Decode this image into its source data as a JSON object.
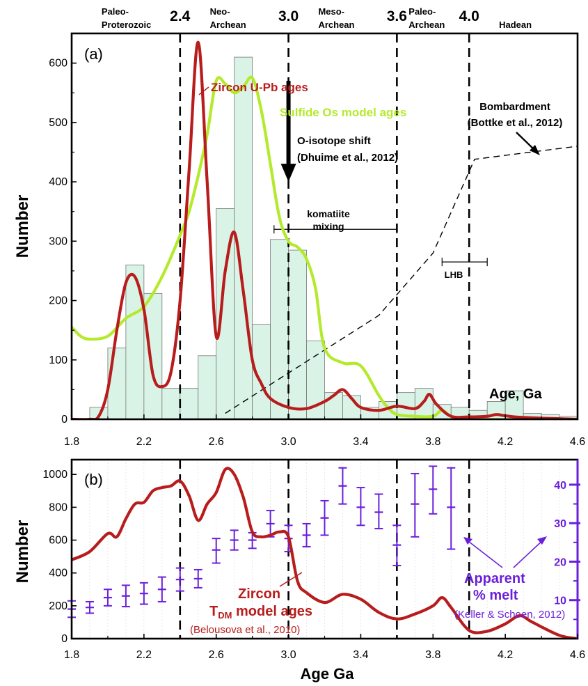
{
  "chart_data": [
    {
      "type": "line",
      "panel_label": "(a)",
      "ylabel": "Number",
      "xlabel": "Age, Ga",
      "xlim": [
        1.8,
        4.6
      ],
      "ylim": [
        0,
        650
      ],
      "x_ticks": [
        "1.8",
        "2.2",
        "2.6",
        "3.0",
        "3.4",
        "3.8",
        "4.2",
        "4.6"
      ],
      "y_ticks": [
        "0",
        "100",
        "200",
        "300",
        "400",
        "500",
        "600"
      ],
      "eon_labels": [
        {
          "l1": "Paleo-",
          "l2": "Proterozoic",
          "x": 2.1
        },
        {
          "l1": "Neo-",
          "l2": "Archean",
          "x": 2.7
        },
        {
          "l1": "Meso-",
          "l2": "Archean",
          "x": 3.3
        },
        {
          "l1": "Paleo-",
          "l2": "Archean",
          "x": 3.8
        },
        {
          "l1": "",
          "l2": "Hadean",
          "x": 4.3
        }
      ],
      "boundaries": [
        {
          "value": 2.4,
          "label": "2.4"
        },
        {
          "value": 3.0,
          "label": "3.0"
        },
        {
          "value": 3.6,
          "label": "3.6"
        },
        {
          "value": 4.0,
          "label": "4.0"
        }
      ],
      "histogram": {
        "bin_start": 1.9,
        "bin_width": 0.1,
        "counts": [
          20,
          120,
          260,
          212,
          52,
          52,
          107,
          355,
          610,
          160,
          303,
          285,
          132,
          45,
          40,
          20,
          30,
          45,
          52,
          25,
          20,
          15,
          30,
          48,
          10,
          8,
          5
        ],
        "color": "#d9f4e6"
      },
      "series": [
        {
          "name": "Zircon U-Pb ages",
          "color": "#b81c1c",
          "x": [
            1.8,
            1.9,
            1.95,
            2.0,
            2.05,
            2.1,
            2.15,
            2.2,
            2.25,
            2.3,
            2.35,
            2.4,
            2.45,
            2.5,
            2.55,
            2.6,
            2.65,
            2.7,
            2.75,
            2.8,
            2.85,
            2.9,
            3.0,
            3.1,
            3.2,
            3.25,
            3.3,
            3.35,
            3.4,
            3.5,
            3.6,
            3.7,
            3.75,
            3.78,
            3.82,
            3.9,
            4.0,
            4.1,
            4.15,
            4.2,
            4.3,
            4.6
          ],
          "y": [
            0,
            0,
            5,
            50,
            150,
            230,
            240,
            185,
            75,
            55,
            80,
            200,
            420,
            635,
            400,
            140,
            250,
            315,
            215,
            100,
            60,
            35,
            20,
            18,
            30,
            40,
            50,
            35,
            20,
            15,
            22,
            18,
            30,
            42,
            25,
            5,
            4,
            5,
            8,
            6,
            3,
            0
          ]
        },
        {
          "name": "Sulfide Os model ages",
          "color": "#b4ea2c",
          "x": [
            1.8,
            1.85,
            1.9,
            2.0,
            2.1,
            2.2,
            2.3,
            2.4,
            2.45,
            2.5,
            2.55,
            2.6,
            2.65,
            2.7,
            2.75,
            2.8,
            2.85,
            2.9,
            2.95,
            3.0,
            3.05,
            3.1,
            3.15,
            3.2,
            3.3,
            3.4,
            3.5,
            3.55,
            3.6,
            3.7,
            3.8,
            3.85,
            3.9,
            4.0,
            4.6
          ],
          "y": [
            155,
            140,
            135,
            140,
            170,
            190,
            240,
            310,
            350,
            410,
            480,
            570,
            565,
            550,
            560,
            575,
            520,
            430,
            340,
            300,
            290,
            270,
            220,
            120,
            95,
            90,
            40,
            20,
            8,
            5,
            5,
            15,
            5,
            0,
            0
          ]
        }
      ],
      "bombardment_curve": {
        "x": [
          2.65,
          3.5,
          3.8,
          4.03,
          4.6
        ],
        "y": [
          10,
          175,
          280,
          438,
          460
        ]
      },
      "komatiite": {
        "x_range": [
          2.92,
          3.6
        ],
        "y": 320,
        "label1": "komatiite",
        "label2": "mixing"
      },
      "lhb": {
        "x_range": [
          3.85,
          4.1
        ],
        "y": 265,
        "label": "LHB"
      },
      "o_shift": {
        "x": 3.0,
        "y_top": 570,
        "y_tip": 400,
        "label1": "O-isotope shift",
        "label2": "(Dhuime et al., 2012)"
      },
      "bombardment_label": {
        "l1": "Bombardment",
        "l2": "(Bottke et al., 2012)"
      },
      "age_label": "Age, Ga"
    },
    {
      "type": "line",
      "panel_label": "(b)",
      "ylabel": "Number",
      "xlabel": "Age Ga",
      "xlim": [
        1.8,
        4.6
      ],
      "ylim": [
        0,
        1090
      ],
      "x_ticks": [
        "1.8",
        "2.2",
        "2.6",
        "3.0",
        "3.4",
        "3.8",
        "4.2",
        "4.6"
      ],
      "y_ticks": [
        "0",
        "200",
        "400",
        "600",
        "800",
        "1000"
      ],
      "y2_ticks": [
        "10",
        "20",
        "30",
        "40"
      ],
      "y2_lim": [
        0,
        46.5
      ],
      "boundaries": [
        2.4,
        3.0,
        3.6,
        4.0
      ],
      "series": [
        {
          "name": "Zircon TDM model ages",
          "color": "#b81c1c",
          "x": [
            1.8,
            1.9,
            2.0,
            2.05,
            2.1,
            2.15,
            2.2,
            2.25,
            2.3,
            2.35,
            2.4,
            2.45,
            2.5,
            2.55,
            2.6,
            2.65,
            2.7,
            2.75,
            2.8,
            2.85,
            2.9,
            2.95,
            3.0,
            3.05,
            3.1,
            3.2,
            3.3,
            3.4,
            3.5,
            3.6,
            3.7,
            3.8,
            3.85,
            3.9,
            4.0,
            4.1,
            4.2,
            4.28,
            4.35,
            4.5,
            4.6
          ],
          "y": [
            480,
            530,
            640,
            620,
            730,
            820,
            830,
            900,
            920,
            930,
            960,
            870,
            720,
            820,
            890,
            1030,
            1000,
            860,
            650,
            620,
            630,
            650,
            620,
            350,
            280,
            220,
            270,
            240,
            160,
            120,
            150,
            200,
            250,
            190,
            50,
            45,
            90,
            140,
            100,
            20,
            0
          ]
        }
      ],
      "melt_bars": {
        "name": "Apparent % melt",
        "color": "#6a1fdb",
        "x": [
          1.8,
          1.9,
          2.0,
          2.1,
          2.2,
          2.3,
          2.4,
          2.5,
          2.6,
          2.7,
          2.8,
          2.9,
          3.0,
          3.1,
          3.2,
          3.3,
          3.4,
          3.5,
          3.6,
          3.7,
          3.8,
          3.9
        ],
        "mid": [
          180,
          190,
          250,
          260,
          275,
          300,
          360,
          365,
          540,
          600,
          600,
          700,
          610,
          630,
          735,
          930,
          800,
          770,
          570,
          820,
          910,
          800
        ],
        "low": [
          130,
          155,
          200,
          195,
          210,
          225,
          290,
          310,
          460,
          540,
          550,
          620,
          530,
          560,
          630,
          820,
          690,
          670,
          445,
          620,
          760,
          545
        ],
        "high": [
          230,
          225,
          300,
          325,
          340,
          375,
          430,
          420,
          610,
          660,
          645,
          780,
          690,
          700,
          840,
          1040,
          920,
          880,
          690,
          1005,
          1050,
          1040
        ]
      },
      "zircon_label": {
        "l1": "Zircon",
        "l2": "T",
        "l2_sub": "DM",
        "l2_rest": " model ages",
        "l3": "(Belousova et al., 2010)"
      },
      "melt_label": {
        "l1": "Apparent",
        "l2": "% melt",
        "l3": "(Keller & Schoen, 2012)"
      }
    }
  ]
}
